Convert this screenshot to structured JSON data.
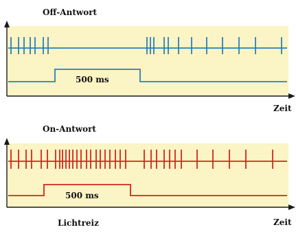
{
  "off_panel": {
    "title": "Off-Antwort",
    "stimulus_label": "500 ms",
    "time_label": "Zeit",
    "color": "#2b7fb8",
    "spike_count": 18
  },
  "on_panel": {
    "title": "On-Antwort",
    "stimulus_label": "500 ms",
    "time_label": "Zeit",
    "color": "#d8231b",
    "spike_count": 35
  },
  "stimulus_label": "Lichtreiz",
  "colors": {
    "panel_fill": "#fbf4c4",
    "axis": "#1a1a1a"
  }
}
